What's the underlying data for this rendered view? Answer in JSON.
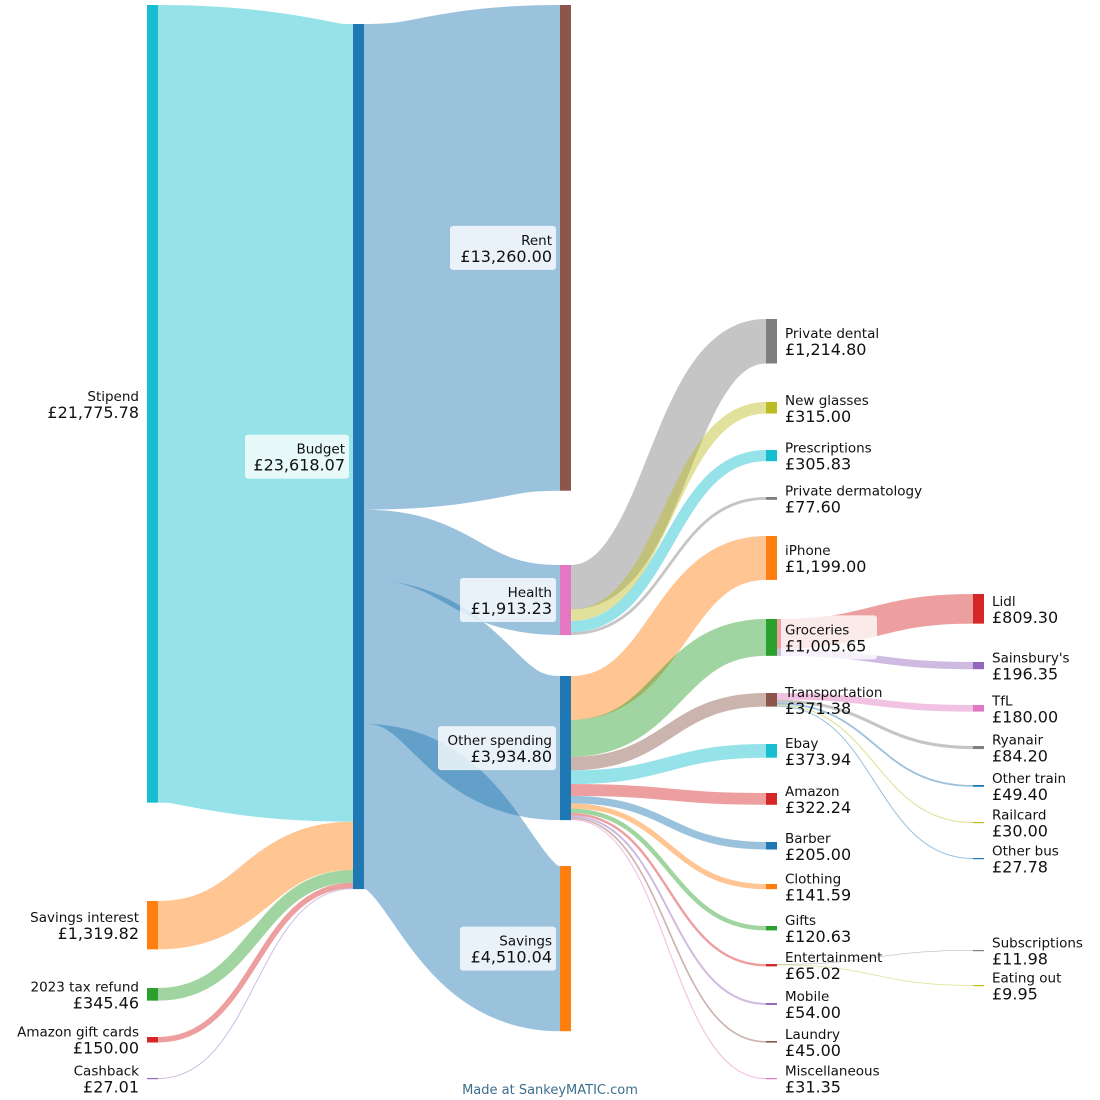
{
  "credit": "Made at SankeyMATIC.com",
  "colors": {
    "stipend": "#17becf",
    "savings_interest": "#ff7f0e",
    "tax_refund": "#2ca02c",
    "amazon_gift": "#d62728",
    "cashback": "#9467bd",
    "budget": "#1f77b4",
    "rent": "#8c564b",
    "health": "#e377c2",
    "other_spending": "#1f77b4",
    "savings": "#ff7f0e",
    "private_dental": "#7f7f7f",
    "new_glasses": "#bcbd22",
    "prescriptions": "#17becf",
    "private_dermatology": "#7f7f7f",
    "iphone": "#ff7f0e",
    "groceries": "#2ca02c",
    "transportation": "#8c564b",
    "ebay": "#17becf",
    "amazon": "#d62728",
    "barber": "#1f77b4",
    "clothing": "#ff7f0e",
    "gifts": "#2ca02c",
    "entertainment": "#d62728",
    "mobile": "#9467bd",
    "laundry": "#8c564b",
    "miscellaneous": "#e377c2",
    "lidl": "#d62728",
    "sainsburys": "#9467bd",
    "tfl": "#e377c2",
    "ryanair": "#7f7f7f",
    "other_train": "#1f77b4",
    "railcard": "#bcbd22",
    "other_bus": "#1f77b4",
    "subscriptions": "#7f7f7f",
    "eating_out": "#bcbd22"
  },
  "nodes": [
    {
      "id": "stipend",
      "label": "Stipend",
      "value": "£21,775.78"
    },
    {
      "id": "savings_interest",
      "label": "Savings interest",
      "value": "£1,319.82"
    },
    {
      "id": "tax_refund",
      "label": "2023 tax refund",
      "value": "£345.46"
    },
    {
      "id": "amazon_gift",
      "label": "Amazon gift cards",
      "value": "£150.00"
    },
    {
      "id": "cashback",
      "label": "Cashback",
      "value": "£27.01"
    },
    {
      "id": "budget",
      "label": "Budget",
      "value": "£23,618.07"
    },
    {
      "id": "rent",
      "label": "Rent",
      "value": "£13,260.00"
    },
    {
      "id": "health",
      "label": "Health",
      "value": "£1,913.23"
    },
    {
      "id": "other_spending",
      "label": "Other spending",
      "value": "£3,934.80"
    },
    {
      "id": "savings",
      "label": "Savings",
      "value": "£4,510.04"
    },
    {
      "id": "private_dental",
      "label": "Private dental",
      "value": "£1,214.80"
    },
    {
      "id": "new_glasses",
      "label": "New glasses",
      "value": "£315.00"
    },
    {
      "id": "prescriptions",
      "label": "Prescriptions",
      "value": "£305.83"
    },
    {
      "id": "private_dermatology",
      "label": "Private dermatology",
      "value": "£77.60"
    },
    {
      "id": "iphone",
      "label": "iPhone",
      "value": "£1,199.00"
    },
    {
      "id": "groceries",
      "label": "Groceries",
      "value": "£1,005.65"
    },
    {
      "id": "transportation",
      "label": "Transportation",
      "value": "£371.38"
    },
    {
      "id": "ebay",
      "label": "Ebay",
      "value": "£373.94"
    },
    {
      "id": "amazon",
      "label": "Amazon",
      "value": "£322.24"
    },
    {
      "id": "barber",
      "label": "Barber",
      "value": "£205.00"
    },
    {
      "id": "clothing",
      "label": "Clothing",
      "value": "£141.59"
    },
    {
      "id": "gifts",
      "label": "Gifts",
      "value": "£120.63"
    },
    {
      "id": "entertainment",
      "label": "Entertainment",
      "value": "£65.02"
    },
    {
      "id": "mobile",
      "label": "Mobile",
      "value": "£54.00"
    },
    {
      "id": "laundry",
      "label": "Laundry",
      "value": "£45.00"
    },
    {
      "id": "miscellaneous",
      "label": "Miscellaneous",
      "value": "£31.35"
    },
    {
      "id": "lidl",
      "label": "Lidl",
      "value": "£809.30"
    },
    {
      "id": "sainsburys",
      "label": "Sainsbury's",
      "value": "£196.35"
    },
    {
      "id": "tfl",
      "label": "TfL",
      "value": "£180.00"
    },
    {
      "id": "ryanair",
      "label": "Ryanair",
      "value": "£84.20"
    },
    {
      "id": "other_train",
      "label": "Other train",
      "value": "£49.40"
    },
    {
      "id": "railcard",
      "label": "Railcard",
      "value": "£30.00"
    },
    {
      "id": "other_bus",
      "label": "Other bus",
      "value": "£27.78"
    },
    {
      "id": "subscriptions",
      "label": "Subscriptions",
      "value": "£11.98"
    },
    {
      "id": "eating_out",
      "label": "Eating out",
      "value": "£9.95"
    }
  ],
  "flows": [
    {
      "from": "stipend",
      "to": "budget",
      "amount": 21775.78
    },
    {
      "from": "savings_interest",
      "to": "budget",
      "amount": 1319.82
    },
    {
      "from": "tax_refund",
      "to": "budget",
      "amount": 345.46
    },
    {
      "from": "amazon_gift",
      "to": "budget",
      "amount": 150.0
    },
    {
      "from": "cashback",
      "to": "budget",
      "amount": 27.01
    },
    {
      "from": "budget",
      "to": "rent",
      "amount": 13260.0
    },
    {
      "from": "budget",
      "to": "health",
      "amount": 1913.23
    },
    {
      "from": "budget",
      "to": "other_spending",
      "amount": 3934.8
    },
    {
      "from": "budget",
      "to": "savings",
      "amount": 4510.04
    },
    {
      "from": "health",
      "to": "private_dental",
      "amount": 1214.8
    },
    {
      "from": "health",
      "to": "new_glasses",
      "amount": 315.0
    },
    {
      "from": "health",
      "to": "prescriptions",
      "amount": 305.83
    },
    {
      "from": "health",
      "to": "private_dermatology",
      "amount": 77.6
    },
    {
      "from": "other_spending",
      "to": "iphone",
      "amount": 1199.0
    },
    {
      "from": "other_spending",
      "to": "groceries",
      "amount": 1005.65
    },
    {
      "from": "other_spending",
      "to": "transportation",
      "amount": 371.38
    },
    {
      "from": "other_spending",
      "to": "ebay",
      "amount": 373.94
    },
    {
      "from": "other_spending",
      "to": "amazon",
      "amount": 322.24
    },
    {
      "from": "other_spending",
      "to": "barber",
      "amount": 205.0
    },
    {
      "from": "other_spending",
      "to": "clothing",
      "amount": 141.59
    },
    {
      "from": "other_spending",
      "to": "gifts",
      "amount": 120.63
    },
    {
      "from": "other_spending",
      "to": "entertainment",
      "amount": 65.02
    },
    {
      "from": "other_spending",
      "to": "mobile",
      "amount": 54.0
    },
    {
      "from": "other_spending",
      "to": "laundry",
      "amount": 45.0
    },
    {
      "from": "other_spending",
      "to": "miscellaneous",
      "amount": 31.35
    },
    {
      "from": "groceries",
      "to": "lidl",
      "amount": 809.3
    },
    {
      "from": "groceries",
      "to": "sainsburys",
      "amount": 196.35
    },
    {
      "from": "transportation",
      "to": "tfl",
      "amount": 180.0
    },
    {
      "from": "transportation",
      "to": "ryanair",
      "amount": 84.2
    },
    {
      "from": "transportation",
      "to": "other_train",
      "amount": 49.4
    },
    {
      "from": "transportation",
      "to": "railcard",
      "amount": 30.0
    },
    {
      "from": "transportation",
      "to": "other_bus",
      "amount": 27.78
    },
    {
      "from": "entertainment",
      "to": "subscriptions",
      "amount": 11.98
    },
    {
      "from": "entertainment",
      "to": "eating_out",
      "amount": 9.95
    }
  ]
}
